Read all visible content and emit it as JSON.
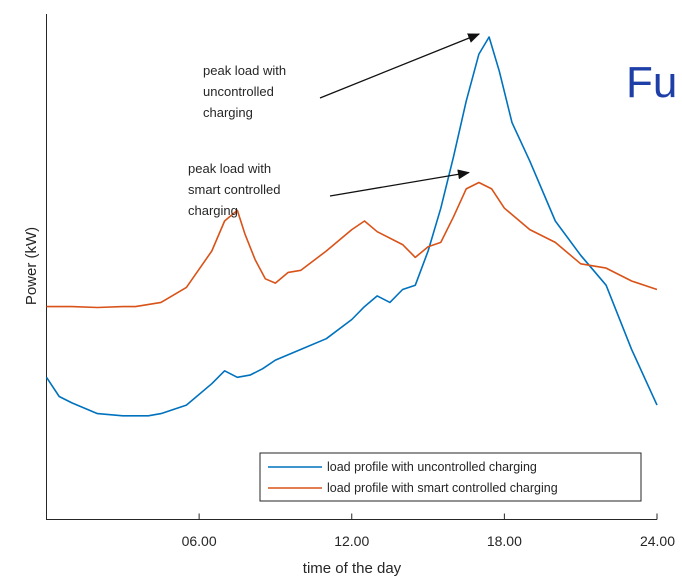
{
  "background_text": "Fu",
  "background_text_color": "#1f3fa8",
  "chart_data": {
    "type": "line",
    "title": "",
    "xlabel": "time of the day",
    "ylabel": "Power (kW)",
    "xlim": [
      0,
      24
    ],
    "ylim": [
      0,
      100
    ],
    "xticks": [
      6,
      12,
      18,
      24
    ],
    "xtick_labels": [
      "06.00",
      "12.00",
      "18.00",
      "24.00"
    ],
    "yticks_shown": false,
    "legend_position": "bottom-right",
    "series": [
      {
        "name": "load profile with uncontrolled charging",
        "color": "#0072bd",
        "x": [
          0,
          0.5,
          1,
          2,
          3,
          4,
          4.5,
          5,
          5.5,
          6.5,
          7,
          7.5,
          8,
          8.5,
          9,
          10,
          11,
          12,
          12.5,
          13,
          13.5,
          14,
          14.5,
          15,
          15.5,
          16,
          16.5,
          17,
          17.4,
          17.8,
          18.3,
          19,
          20,
          21,
          22,
          23,
          24
        ],
        "y": [
          20.5,
          16,
          14.5,
          12,
          11.5,
          11.5,
          12,
          13,
          14,
          19,
          22,
          20.5,
          21,
          22.5,
          24.5,
          27,
          29.5,
          34,
          37,
          39.5,
          38,
          41,
          42,
          50,
          60,
          72,
          85,
          96,
          100,
          92,
          80,
          71,
          57,
          49,
          42,
          27,
          14
        ]
      },
      {
        "name": "load profile with smart controlled charging",
        "color": "#d95319",
        "x": [
          0,
          1,
          2,
          3,
          3.5,
          4.5,
          5.5,
          6.5,
          7,
          7.5,
          7.8,
          8.2,
          8.6,
          9,
          9.5,
          10,
          11,
          12,
          12.5,
          13,
          14,
          14.5,
          15,
          15.5,
          16,
          16.5,
          17,
          17.5,
          18,
          19,
          20,
          21,
          22,
          23,
          24
        ],
        "y": [
          37,
          37,
          36.8,
          37,
          37,
          38,
          41.5,
          50,
          57,
          59.5,
          54,
          48,
          43.5,
          42.5,
          45,
          45.5,
          50,
          55,
          57,
          54.5,
          51.5,
          48.5,
          51,
          52,
          58,
          64.5,
          66,
          64.5,
          60,
          55,
          52,
          47,
          46,
          43,
          41
        ]
      }
    ],
    "annotations": [
      {
        "lines": [
          "peak load with",
          "uncontrolled",
          "charging"
        ],
        "target_x": 17.4,
        "target_y": 100
      },
      {
        "lines": [
          "peak load with",
          "smart controlled",
          "charging"
        ],
        "target_x": 17.0,
        "target_y": 66
      }
    ]
  }
}
